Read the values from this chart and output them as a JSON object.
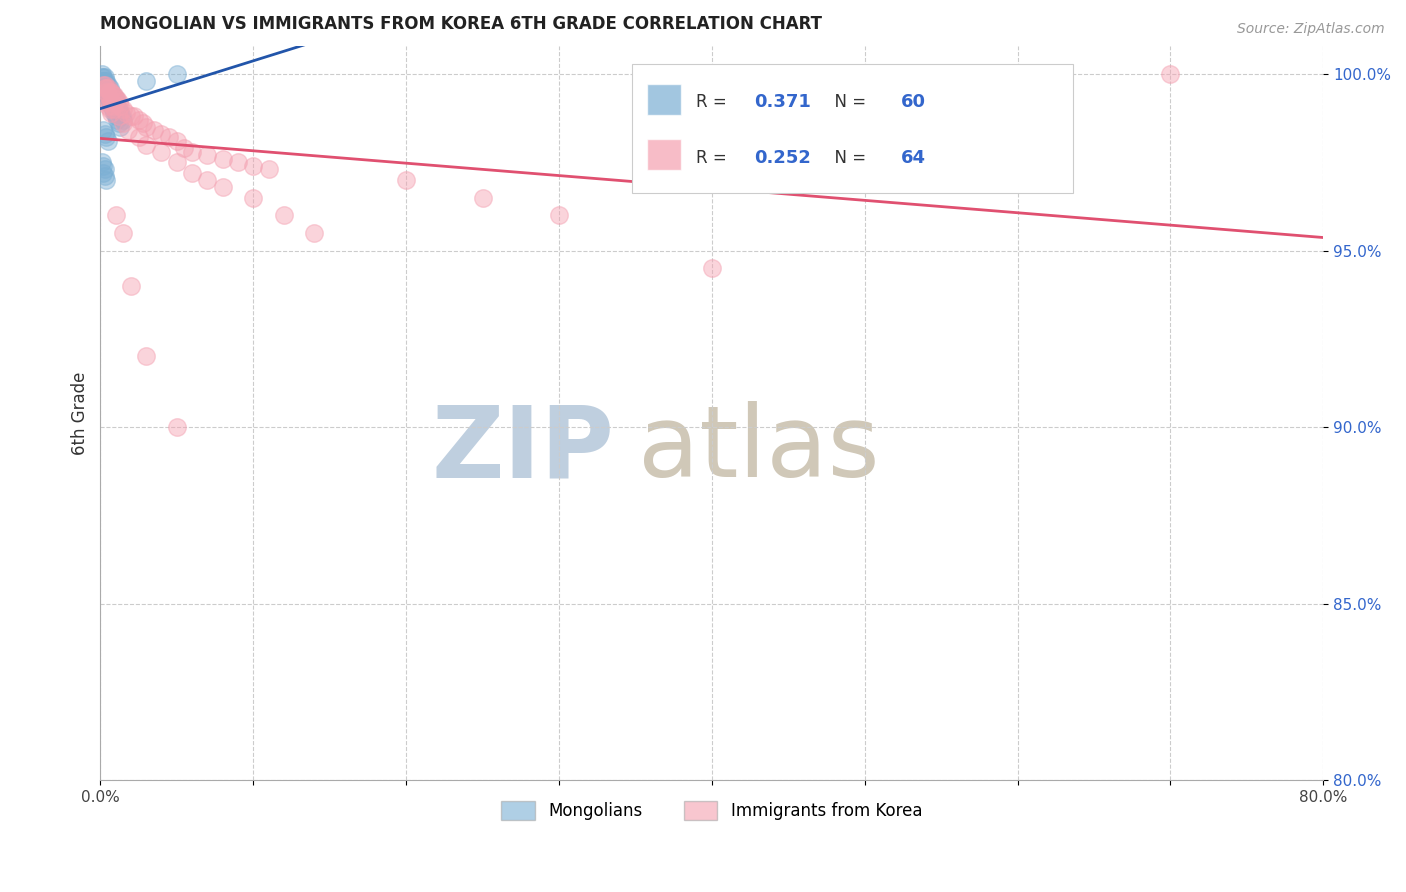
{
  "title": "MONGOLIAN VS IMMIGRANTS FROM KOREA 6TH GRADE CORRELATION CHART",
  "source_text": "Source: ZipAtlas.com",
  "ylabel": "6th Grade",
  "x_min": 0.0,
  "x_max": 0.8,
  "y_min": 0.8,
  "y_max": 1.008,
  "y_ticks": [
    0.8,
    0.85,
    0.9,
    0.95,
    1.0
  ],
  "x_ticks": [
    0.0,
    0.1,
    0.2,
    0.3,
    0.4,
    0.5,
    0.6,
    0.7,
    0.8
  ],
  "blue_color": "#7BAFD4",
  "pink_color": "#F4A0B0",
  "blue_line_color": "#2255AA",
  "pink_line_color": "#E05070",
  "legend_R_blue": "0.371",
  "legend_N_blue": "60",
  "legend_R_pink": "0.252",
  "legend_N_pink": "64",
  "watermark_zip": "ZIP",
  "watermark_atlas": "atlas",
  "watermark_color_zip": "#BFCFDF",
  "watermark_color_atlas": "#D0C8B8",
  "blue_x": [
    0.001,
    0.001,
    0.002,
    0.002,
    0.002,
    0.003,
    0.003,
    0.003,
    0.003,
    0.004,
    0.004,
    0.004,
    0.005,
    0.005,
    0.005,
    0.006,
    0.006,
    0.007,
    0.007,
    0.008,
    0.008,
    0.009,
    0.009,
    0.01,
    0.01,
    0.011,
    0.012,
    0.013,
    0.014,
    0.015,
    0.001,
    0.002,
    0.002,
    0.003,
    0.003,
    0.004,
    0.004,
    0.005,
    0.005,
    0.006,
    0.006,
    0.007,
    0.008,
    0.009,
    0.01,
    0.011,
    0.012,
    0.013,
    0.002,
    0.003,
    0.004,
    0.005,
    0.001,
    0.002,
    0.003,
    0.002,
    0.003,
    0.004,
    0.03,
    0.05
  ],
  "blue_y": [
    1.0,
    0.999,
    0.999,
    0.998,
    0.997,
    0.999,
    0.998,
    0.997,
    0.996,
    0.998,
    0.997,
    0.996,
    0.997,
    0.996,
    0.995,
    0.996,
    0.995,
    0.995,
    0.994,
    0.994,
    0.993,
    0.993,
    0.992,
    0.993,
    0.992,
    0.991,
    0.99,
    0.989,
    0.988,
    0.987,
    0.998,
    0.997,
    0.996,
    0.996,
    0.995,
    0.995,
    0.994,
    0.994,
    0.993,
    0.993,
    0.992,
    0.991,
    0.99,
    0.989,
    0.988,
    0.987,
    0.986,
    0.985,
    0.984,
    0.983,
    0.982,
    0.981,
    0.975,
    0.974,
    0.973,
    0.972,
    0.971,
    0.97,
    0.998,
    1.0
  ],
  "pink_x": [
    0.002,
    0.003,
    0.004,
    0.005,
    0.006,
    0.007,
    0.008,
    0.009,
    0.01,
    0.011,
    0.012,
    0.013,
    0.015,
    0.017,
    0.02,
    0.022,
    0.025,
    0.028,
    0.03,
    0.035,
    0.04,
    0.045,
    0.05,
    0.055,
    0.06,
    0.07,
    0.08,
    0.09,
    0.1,
    0.11,
    0.003,
    0.004,
    0.005,
    0.006,
    0.007,
    0.008,
    0.009,
    0.012,
    0.015,
    0.018,
    0.025,
    0.03,
    0.04,
    0.05,
    0.06,
    0.07,
    0.08,
    0.1,
    0.12,
    0.14,
    0.004,
    0.005,
    0.006,
    0.007,
    0.01,
    0.015,
    0.02,
    0.03,
    0.05,
    0.2,
    0.25,
    0.3,
    0.4,
    0.7
  ],
  "pink_y": [
    0.997,
    0.997,
    0.996,
    0.996,
    0.995,
    0.995,
    0.994,
    0.994,
    0.993,
    0.993,
    0.992,
    0.991,
    0.99,
    0.989,
    0.988,
    0.988,
    0.987,
    0.986,
    0.985,
    0.984,
    0.983,
    0.982,
    0.981,
    0.979,
    0.978,
    0.977,
    0.976,
    0.975,
    0.974,
    0.973,
    0.996,
    0.995,
    0.994,
    0.993,
    0.992,
    0.991,
    0.99,
    0.988,
    0.986,
    0.984,
    0.982,
    0.98,
    0.978,
    0.975,
    0.972,
    0.97,
    0.968,
    0.965,
    0.96,
    0.955,
    0.992,
    0.991,
    0.99,
    0.989,
    0.96,
    0.955,
    0.94,
    0.92,
    0.9,
    0.97,
    0.965,
    0.96,
    0.945,
    1.0
  ]
}
